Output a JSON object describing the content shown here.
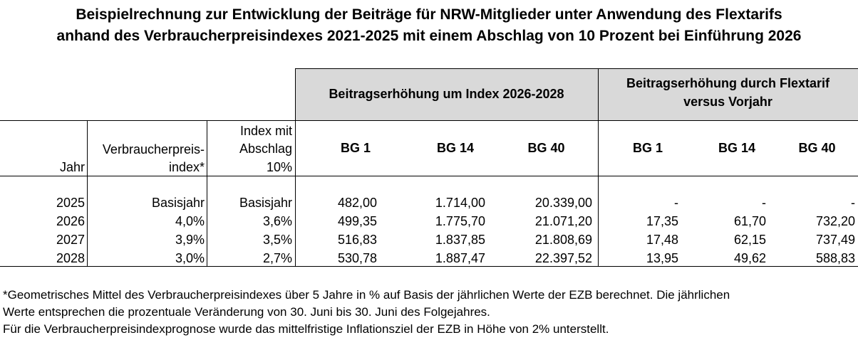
{
  "title": {
    "line1": "Beispielrechnung zur Entwicklung der Beiträge für NRW-Mitglieder unter Anwendung des Flextarifs",
    "line2": "anhand des Verbraucherpreisindexes 2021-2025 mit einem Abschlag von 10 Prozent bei Einführung 2026"
  },
  "header": {
    "group1": "Beitragserhöhung um Index 2026-2028",
    "group2_line1": "Beitragserhöhung durch Flextarif",
    "group2_line2": "versus Vorjahr",
    "col_jahr": "Jahr",
    "col_vpi_line1": "Verbraucherpreis-",
    "col_vpi_line2": "index*",
    "col_idx_line1": "Index mit",
    "col_idx_line2": "Abschlag",
    "col_idx_line3": "10%",
    "bg1": "BG 1",
    "bg14": "BG 14",
    "bg40": "BG 40",
    "bg1b": "BG 1",
    "bg14b": "BG 14",
    "bg40b": "BG 40"
  },
  "rows": [
    [
      "2025",
      "Basisjahr",
      "Basisjahr",
      "482,00",
      "1.714,00",
      "20.339,00",
      "-",
      "-",
      "-"
    ],
    [
      "2026",
      "4,0%",
      "3,6%",
      "499,35",
      "1.775,70",
      "21.071,20",
      "17,35",
      "61,70",
      "732,20"
    ],
    [
      "2027",
      "3,9%",
      "3,5%",
      "516,83",
      "1.837,85",
      "21.808,69",
      "17,48",
      "62,15",
      "737,49"
    ],
    [
      "2028",
      "3,0%",
      "2,7%",
      "530,78",
      "1.887,47",
      "22.397,52",
      "13,95",
      "49,62",
      "588,83"
    ]
  ],
  "footnote": {
    "line1": "*Geometrisches Mittel des Verbraucherpreisindexes über 5 Jahre in % auf Basis der jährlichen Werte der EZB berechnet. Die jährlichen",
    "line2": "Werte entsprechen die prozentuale Veränderung von 30. Juni bis 30. Juni des Folgejahres.",
    "line3": "Für die Verbraucherpreisindexprognose wurde das mittelfristige Inflationsziel der EZB in Höhe von 2% unterstellt."
  }
}
